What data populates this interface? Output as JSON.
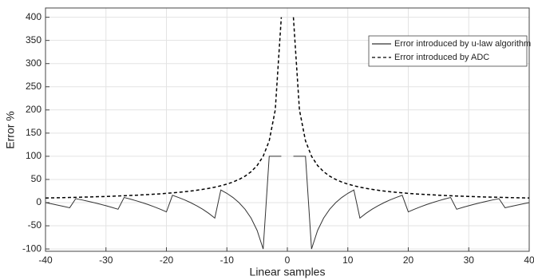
{
  "chart_data": {
    "type": "line",
    "xlabel": "Linear samples",
    "ylabel": "Error %",
    "x": [
      -40,
      -39,
      -38,
      -37,
      -36,
      -35,
      -34,
      -33,
      -32,
      -31,
      -30,
      -29,
      -28,
      -27,
      -26,
      -25,
      -24,
      -23,
      -22,
      -21,
      -20,
      -19,
      -18,
      -17,
      -16,
      -15,
      -14,
      -13,
      -12,
      -11,
      -10,
      -9,
      -8,
      -7,
      -6,
      -5,
      -4,
      -3,
      -2,
      -1,
      0,
      1,
      2,
      3,
      4,
      5,
      6,
      7,
      8,
      9,
      10,
      11,
      12,
      13,
      14,
      15,
      16,
      17,
      18,
      19,
      20,
      21,
      22,
      23,
      24,
      25,
      26,
      27,
      28,
      29,
      30,
      31,
      32,
      33,
      34,
      35,
      36,
      37,
      38,
      39,
      40
    ],
    "series": [
      {
        "name": "Error introduced by u-law algorithm",
        "color": "#333333",
        "line_style": "solid",
        "values": [
          0,
          -2.6,
          -5.3,
          -8.1,
          -11.1,
          8.6,
          5.9,
          3,
          0,
          -3.2,
          -6.7,
          -10.3,
          -14.3,
          11.1,
          7.7,
          4,
          0,
          -4.3,
          -9.1,
          -14.3,
          -20,
          15.8,
          11.1,
          5.9,
          0,
          -6.7,
          -14.3,
          -23.1,
          -33.3,
          27.3,
          20,
          11.1,
          0,
          -14.3,
          -33.3,
          -60,
          -100,
          100,
          100,
          100,
          null,
          100,
          100,
          100,
          -100,
          -60,
          -33.3,
          -14.3,
          0,
          11.1,
          20,
          27.3,
          -33.3,
          -23.1,
          -14.3,
          -6.7,
          0,
          5.9,
          11.1,
          15.8,
          -20,
          -14.3,
          -9.1,
          -4.3,
          0,
          4,
          7.7,
          11.1,
          -14.3,
          -10.3,
          -6.7,
          -3.2,
          0,
          3,
          5.9,
          8.6,
          -11.1,
          -8.1,
          -5.3,
          -2.6,
          0
        ]
      },
      {
        "name": "Error introduced by ADC",
        "color": "#000000",
        "line_style": "dashed",
        "values": [
          10,
          10.3,
          10.5,
          10.8,
          11.1,
          11.4,
          11.8,
          12.1,
          12.5,
          12.9,
          13.3,
          13.8,
          14.3,
          14.8,
          15.4,
          16,
          16.7,
          17.4,
          18.2,
          19,
          20,
          21.1,
          22.2,
          23.5,
          25,
          26.7,
          28.6,
          30.8,
          33.3,
          36.4,
          40,
          44.4,
          50,
          57.1,
          66.7,
          80,
          100,
          133.3,
          200,
          400,
          null,
          400,
          200,
          133.3,
          100,
          80,
          66.7,
          57.1,
          50,
          44.4,
          40,
          36.4,
          33.3,
          30.8,
          28.6,
          26.7,
          25,
          23.5,
          22.2,
          21.1,
          20,
          19,
          18.2,
          17.4,
          16.7,
          16,
          15.4,
          14.8,
          14.3,
          13.8,
          13.3,
          12.9,
          12.5,
          12.1,
          11.8,
          11.4,
          11.1,
          10.8,
          10.5,
          10.3,
          10
        ]
      }
    ],
    "xlim": [
      -40,
      40
    ],
    "ylim": [
      -105,
      420
    ],
    "xticks": [
      -40,
      -30,
      -20,
      -10,
      0,
      10,
      20,
      30,
      40
    ],
    "yticks": [
      -100,
      -50,
      0,
      50,
      100,
      150,
      200,
      250,
      300,
      350,
      400
    ],
    "grid": true,
    "legend": "upper right"
  }
}
